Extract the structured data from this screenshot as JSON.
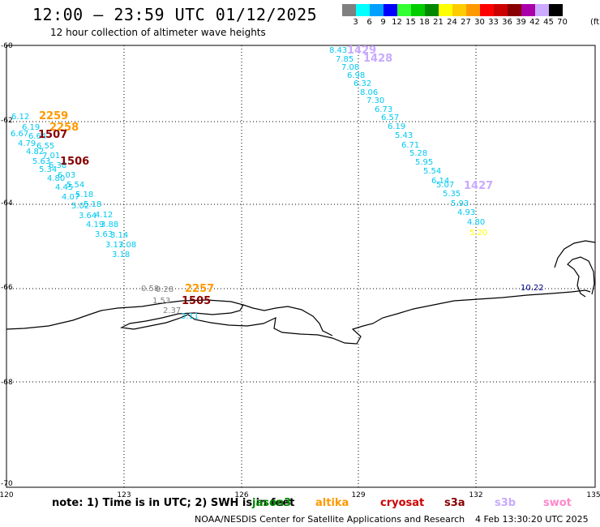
{
  "title": "12:00 – 23:59 UTC 01/12/2025",
  "subtitle": "12 hour collection of altimeter wave heights",
  "legend": {
    "unit": "(ft)",
    "bins": [
      {
        "label": "3",
        "color": "#808080"
      },
      {
        "label": "6",
        "color": "#00ffff"
      },
      {
        "label": "9",
        "color": "#00a0ff"
      },
      {
        "label": "12",
        "color": "#0000ff"
      },
      {
        "label": "15",
        "color": "#33ff33"
      },
      {
        "label": "18",
        "color": "#00cc00"
      },
      {
        "label": "21",
        "color": "#008800"
      },
      {
        "label": "24",
        "color": "#ffff00"
      },
      {
        "label": "27",
        "color": "#ffcc00"
      },
      {
        "label": "30",
        "color": "#ff9900"
      },
      {
        "label": "33",
        "color": "#ff0000"
      },
      {
        "label": "36",
        "color": "#cc0000"
      },
      {
        "label": "39",
        "color": "#880000"
      },
      {
        "label": "42",
        "color": "#aa00aa"
      },
      {
        "label": "45",
        "color": "#ccaaff"
      },
      {
        "label": "70",
        "color": "#000000"
      }
    ]
  },
  "axes": {
    "lon_ticks": [
      "120",
      "123",
      "126",
      "129",
      "132",
      "135"
    ],
    "lat_ticks": [
      "-60",
      "-62",
      "-64",
      "-66",
      "-68",
      "-70"
    ]
  },
  "colors": {
    "cyan_values": "#00c8f0",
    "gray_values": "#808080",
    "yellow_values": "#ffff00",
    "navy_values": "#000088",
    "altika": "#ff9900",
    "s3a": "#880000",
    "s3b": "#c8aaff",
    "coast": "#000000"
  },
  "map": {
    "time_labels": [
      {
        "text": "2259",
        "color": "#ff9900"
      },
      {
        "text": "2258",
        "color": "#ff9900"
      },
      {
        "text": "1507",
        "color": "#880000"
      },
      {
        "text": "1506",
        "color": "#880000"
      },
      {
        "text": "1429",
        "color": "#c8aaff"
      },
      {
        "text": "1428",
        "color": "#c8aaff"
      },
      {
        "text": "1427",
        "color": "#c8aaff"
      },
      {
        "text": "2257",
        "color": "#ff9900"
      },
      {
        "text": "1505",
        "color": "#880000"
      }
    ],
    "track_west_values": [
      "6.12",
      "6.19",
      "6.67",
      "6.64",
      "4.79",
      "6.55",
      "4.82",
      "7.01",
      "5.63",
      "6.38",
      "5.34",
      "6.03",
      "4.80",
      "5.54",
      "4.45",
      "5.18",
      "4.07",
      "5.02",
      "5.18",
      "3.64",
      "4.12",
      "4.19",
      "3.88",
      "3.63",
      "3.14",
      "3.17",
      "3.08",
      "3.18"
    ],
    "track_east_values": [
      "8.43",
      "7.85",
      "7.08",
      "6.98",
      "6.32",
      "8.06",
      "7.30",
      "6.73",
      "6.57",
      "6.19",
      "5.43",
      "6.71",
      "5.28",
      "5.95",
      "5.54",
      "5.07",
      "6.14",
      "5.35",
      "5.93",
      "4.93",
      "4.80"
    ],
    "track_east_yellow": "5.20",
    "coast_gray_values": [
      "0.58",
      "0.28",
      "1.53",
      "2.37"
    ],
    "coast_cyan_value": "3.11",
    "navy_value": "10.22"
  },
  "notes": {
    "text": "note:  1) Time is in UTC; 2) SWH is in feet",
    "satellites": [
      {
        "name": "jason3",
        "color": "#008800"
      },
      {
        "name": "altika",
        "color": "#ff9900"
      },
      {
        "name": "cryosat",
        "color": "#cc0000"
      },
      {
        "name": "s3a",
        "color": "#880000"
      },
      {
        "name": "s3b",
        "color": "#c8aaff"
      },
      {
        "name": "swot",
        "color": "#ff88cc"
      }
    ]
  },
  "footer": {
    "credit": "NOAA/NESDIS Center for Satellite Applications and Research",
    "date": "4 Feb 13:30:20 UTC 2025"
  }
}
